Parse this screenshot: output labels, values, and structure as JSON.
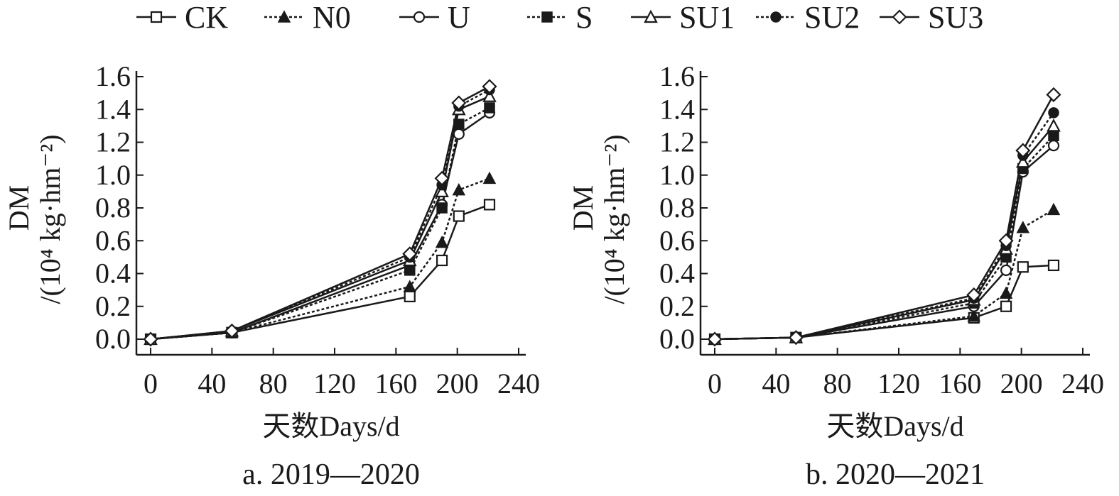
{
  "legend": [
    {
      "name": "CK",
      "marker": "open-square",
      "dash": "solid"
    },
    {
      "name": "N0",
      "marker": "filled-triangle",
      "dash": "dotted"
    },
    {
      "name": "U",
      "marker": "open-circle",
      "dash": "solid"
    },
    {
      "name": "S",
      "marker": "filled-square",
      "dash": "dotted"
    },
    {
      "name": "SU1",
      "marker": "open-triangle",
      "dash": "solid"
    },
    {
      "name": "SU2",
      "marker": "filled-circle",
      "dash": "dotted"
    },
    {
      "name": "SU3",
      "marker": "open-diamond",
      "dash": "solid"
    }
  ],
  "colors": {
    "ink": "#1a1a1a",
    "background": "#ffffff"
  },
  "chart_data": [
    {
      "type": "line",
      "caption": "a. 2019—2020",
      "ylabel_main": "DM",
      "ylabel_unit": "/(10⁴ kg·hm⁻²)",
      "xlabel": "天数Days/d",
      "xlim": [
        0,
        240
      ],
      "ylim": [
        0.0,
        1.6
      ],
      "x_ticks": [
        0,
        40,
        80,
        120,
        160,
        200,
        240
      ],
      "y_ticks": [
        "0.0",
        "0.2",
        "0.4",
        "0.6",
        "0.8",
        "1.0",
        "1.2",
        "1.4",
        "1.6"
      ],
      "grid": false,
      "x": [
        0,
        53,
        169,
        190,
        201,
        221
      ],
      "series": [
        {
          "name": "CK",
          "values": [
            0.0,
            0.04,
            0.26,
            0.48,
            0.75,
            0.82
          ]
        },
        {
          "name": "N0",
          "values": [
            0.0,
            0.04,
            0.32,
            0.59,
            0.91,
            0.98
          ]
        },
        {
          "name": "U",
          "values": [
            0.0,
            0.04,
            0.45,
            0.82,
            1.25,
            1.38
          ]
        },
        {
          "name": "S",
          "values": [
            0.0,
            0.04,
            0.42,
            0.8,
            1.31,
            1.41
          ]
        },
        {
          "name": "SU1",
          "values": [
            0.0,
            0.05,
            0.48,
            0.9,
            1.4,
            1.48
          ]
        },
        {
          "name": "SU2",
          "values": [
            0.0,
            0.05,
            0.5,
            0.94,
            1.42,
            1.52
          ]
        },
        {
          "name": "SU3",
          "values": [
            0.0,
            0.05,
            0.52,
            0.98,
            1.44,
            1.54
          ]
        }
      ]
    },
    {
      "type": "line",
      "caption": "b. 2020—2021",
      "ylabel_main": "DM",
      "ylabel_unit": "/(10⁴ kg·hm⁻²)",
      "xlabel": "天数Days/d",
      "xlim": [
        0,
        240
      ],
      "ylim": [
        0.0,
        1.6
      ],
      "x_ticks": [
        0,
        40,
        80,
        120,
        160,
        200,
        240
      ],
      "y_ticks": [
        "0.0",
        "0.2",
        "0.4",
        "0.6",
        "0.8",
        "1.0",
        "1.2",
        "1.4",
        "1.6"
      ],
      "grid": false,
      "x": [
        0,
        53,
        169,
        190,
        201,
        221
      ],
      "series": [
        {
          "name": "CK",
          "values": [
            0.0,
            0.01,
            0.13,
            0.2,
            0.44,
            0.45
          ]
        },
        {
          "name": "N0",
          "values": [
            0.0,
            0.01,
            0.14,
            0.28,
            0.68,
            0.79
          ]
        },
        {
          "name": "U",
          "values": [
            0.0,
            0.01,
            0.2,
            0.42,
            1.02,
            1.18
          ]
        },
        {
          "name": "S",
          "values": [
            0.0,
            0.01,
            0.22,
            0.5,
            1.04,
            1.24
          ]
        },
        {
          "name": "SU1",
          "values": [
            0.0,
            0.01,
            0.24,
            0.55,
            1.08,
            1.3
          ]
        },
        {
          "name": "SU2",
          "values": [
            0.0,
            0.01,
            0.25,
            0.57,
            1.12,
            1.38
          ]
        },
        {
          "name": "SU3",
          "values": [
            0.0,
            0.01,
            0.27,
            0.6,
            1.15,
            1.49
          ]
        }
      ]
    }
  ]
}
